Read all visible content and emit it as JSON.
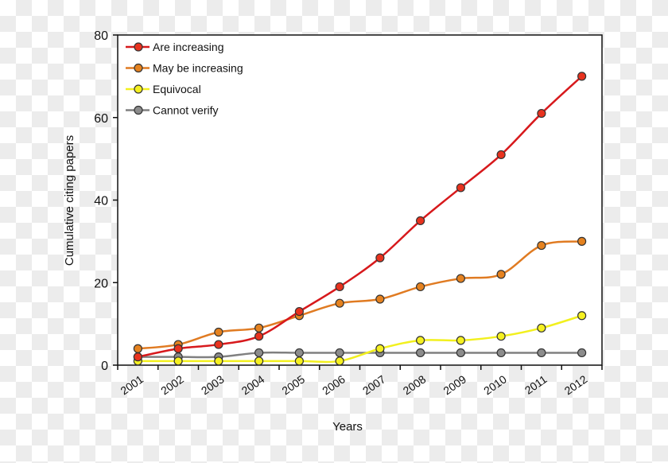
{
  "chart_data": {
    "type": "line",
    "title": "",
    "xlabel": "Years",
    "ylabel": "Cumulative citing papers",
    "categories": [
      "2001",
      "2002",
      "2003",
      "2004",
      "2005",
      "2006",
      "2007",
      "2008",
      "2009",
      "2010",
      "2011",
      "2012"
    ],
    "ylim": [
      0,
      80
    ],
    "yticks": [
      0,
      20,
      40,
      60,
      80
    ],
    "grid": false,
    "legend_position": "top-left",
    "smooth": true,
    "series": [
      {
        "name": "Are increasing",
        "color": "#d7191c",
        "marker_color": "#e8321e",
        "values": [
          2,
          4,
          5,
          7,
          13,
          19,
          26,
          35,
          43,
          51,
          61,
          70
        ]
      },
      {
        "name": "May be increasing",
        "color": "#e07b22",
        "marker_color": "#e5821f",
        "values": [
          4,
          5,
          8,
          9,
          12,
          15,
          16,
          19,
          21,
          22,
          29,
          30
        ]
      },
      {
        "name": "Equivocal",
        "color": "#f2f01e",
        "marker_color": "#f5f020",
        "values": [
          1,
          1,
          1,
          1,
          1,
          1,
          4,
          6,
          6,
          7,
          9,
          12
        ]
      },
      {
        "name": "Cannot verify",
        "color": "#808080",
        "marker_color": "#8c8c8c",
        "values": [
          2,
          2,
          2,
          3,
          3,
          3,
          3,
          3,
          3,
          3,
          3,
          3
        ]
      }
    ]
  }
}
